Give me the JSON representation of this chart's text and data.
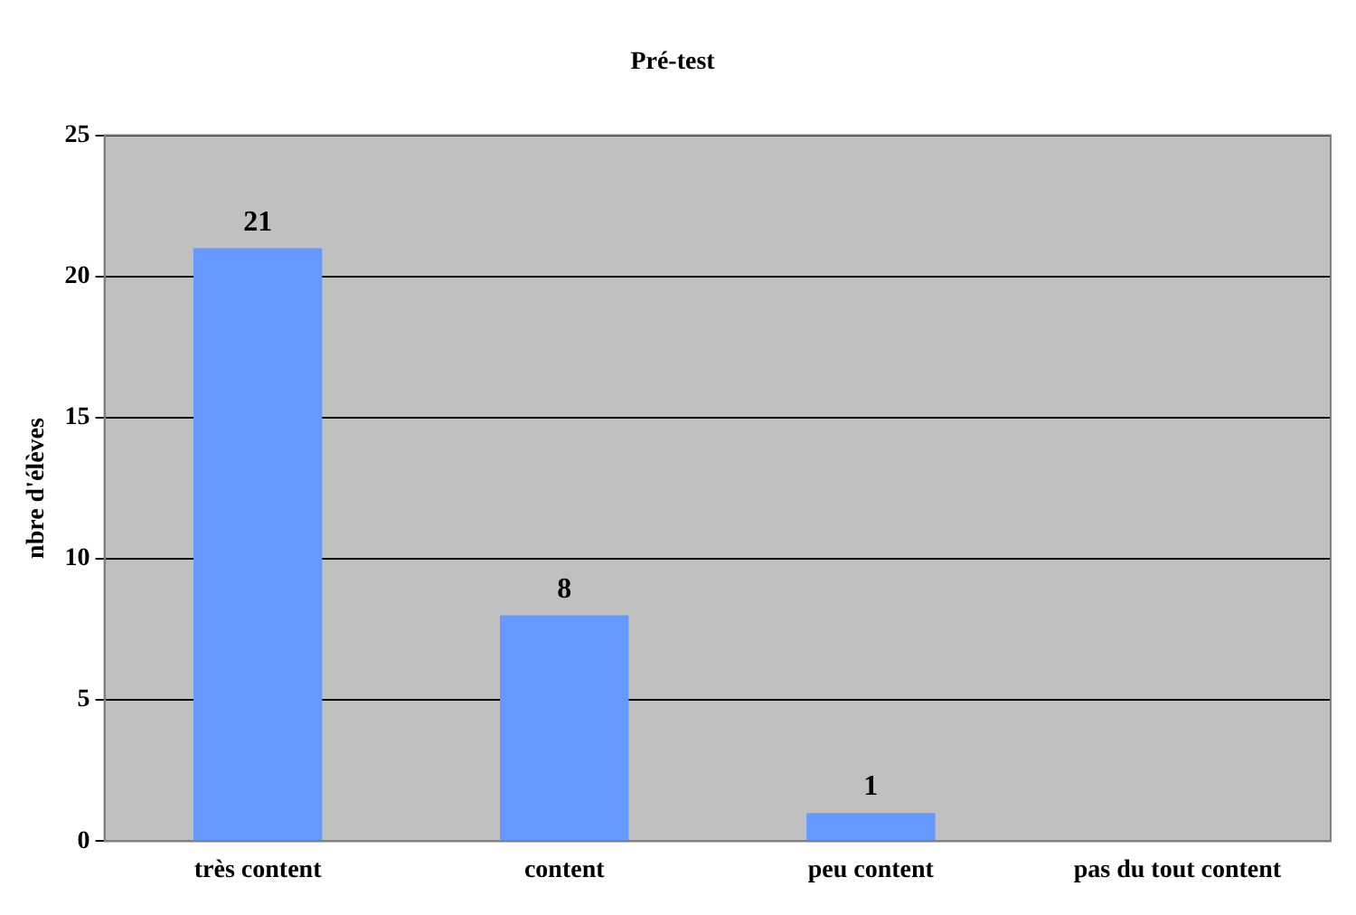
{
  "chart_data": {
    "type": "bar",
    "title": "Pré-test",
    "ylabel": "nbre d'élèves",
    "categories": [
      "très content",
      "content",
      "peu content",
      "pas du tout content"
    ],
    "values": [
      21,
      8,
      1,
      0
    ],
    "color": "#6699ff",
    "value_labels": [
      "21",
      "8",
      "1",
      null
    ],
    "ylim": [
      0,
      25
    ],
    "yticks": [
      0,
      5,
      10,
      15,
      20,
      25
    ],
    "grid": "y",
    "legend": false
  }
}
